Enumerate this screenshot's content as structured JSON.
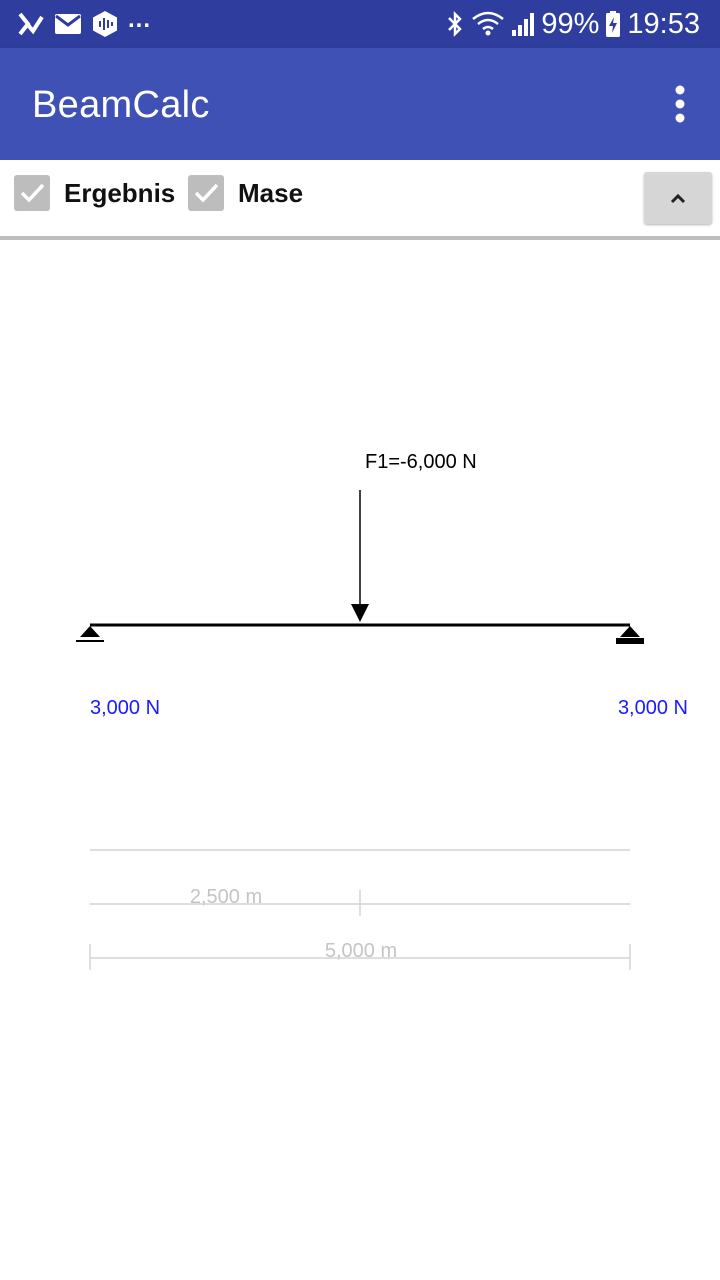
{
  "status_bar": {
    "battery": "99%",
    "time": "19:53",
    "more_indicator": "...",
    "icons": [
      "vpn-check-icon",
      "mail-icon",
      "audio-app-icon",
      "bluetooth-icon",
      "wifi-icon",
      "signal-icon",
      "battery-charging-icon"
    ]
  },
  "app_bar": {
    "title": "BeamCalc",
    "overflow_icon": "more-vert-icon"
  },
  "options": {
    "result": {
      "label": "Ergebnis",
      "checked": true
    },
    "dimensions": {
      "label": "Mase",
      "checked": true
    },
    "collapse_icon": "chevron-up-icon"
  },
  "beam": {
    "load": {
      "label": "F1=-6,000 N",
      "position_m": 2.5,
      "value_n": -6000
    },
    "supports": [
      {
        "type": "pinned",
        "position_m": 0.0
      },
      {
        "type": "roller",
        "position_m": 5.0
      }
    ],
    "reactions": [
      {
        "label": "3,000 N",
        "position_m": 0.0
      },
      {
        "label": "3,000 N",
        "position_m": 5.0
      }
    ],
    "dimensions": {
      "load_position_label": "2,500 m",
      "span_label": "5,000 m",
      "span_m": 5.0
    }
  },
  "colors": {
    "status_bar": "#2f3e9e",
    "app_bar": "#3f51b5",
    "reaction_text": "#1a1aff",
    "dimension_text": "#c4c4c4",
    "checkbox": "#bdbdbd"
  }
}
